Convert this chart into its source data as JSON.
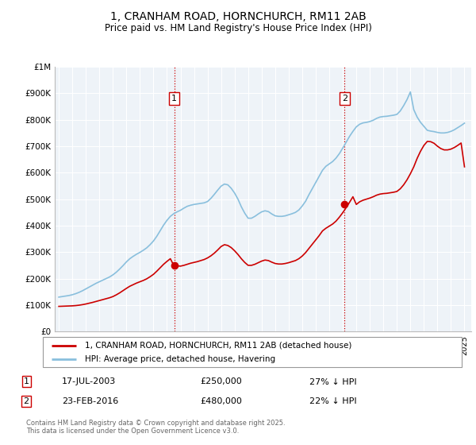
{
  "title": "1, CRANHAM ROAD, HORNCHURCH, RM11 2AB",
  "subtitle": "Price paid vs. HM Land Registry's House Price Index (HPI)",
  "ylim": [
    0,
    1000000
  ],
  "yticks": [
    0,
    100000,
    200000,
    300000,
    400000,
    500000,
    600000,
    700000,
    800000,
    900000,
    1000000
  ],
  "ytick_labels": [
    "£0",
    "£100K",
    "£200K",
    "£300K",
    "£400K",
    "£500K",
    "£600K",
    "£700K",
    "£800K",
    "£900K",
    "£1M"
  ],
  "hpi_color": "#89bfdd",
  "price_color": "#cc0000",
  "vline_color": "#cc0000",
  "chart_bg": "#f0f4f8",
  "transaction1_date": 2003.54,
  "transaction1_price": 250000,
  "transaction1_label": "1",
  "transaction2_date": 2016.14,
  "transaction2_price": 480000,
  "transaction2_label": "2",
  "legend_line1": "1, CRANHAM ROAD, HORNCHURCH, RM11 2AB (detached house)",
  "legend_line2": "HPI: Average price, detached house, Havering",
  "note1_label": "1",
  "note1_date": "17-JUL-2003",
  "note1_price": "£250,000",
  "note1_pct": "27% ↓ HPI",
  "note2_label": "2",
  "note2_date": "23-FEB-2016",
  "note2_price": "£480,000",
  "note2_pct": "22% ↓ HPI",
  "footer": "Contains HM Land Registry data © Crown copyright and database right 2025.\nThis data is licensed under the Open Government Licence v3.0.",
  "hpi_x": [
    1995,
    1995.25,
    1995.5,
    1995.75,
    1996,
    1996.25,
    1996.5,
    1996.75,
    1997,
    1997.25,
    1997.5,
    1997.75,
    1998,
    1998.25,
    1998.5,
    1998.75,
    1999,
    1999.25,
    1999.5,
    1999.75,
    2000,
    2000.25,
    2000.5,
    2000.75,
    2001,
    2001.25,
    2001.5,
    2001.75,
    2002,
    2002.25,
    2002.5,
    2002.75,
    2003,
    2003.25,
    2003.5,
    2003.75,
    2004,
    2004.25,
    2004.5,
    2004.75,
    2005,
    2005.25,
    2005.5,
    2005.75,
    2006,
    2006.25,
    2006.5,
    2006.75,
    2007,
    2007.25,
    2007.5,
    2007.75,
    2008,
    2008.25,
    2008.5,
    2008.75,
    2009,
    2009.25,
    2009.5,
    2009.75,
    2010,
    2010.25,
    2010.5,
    2010.75,
    2011,
    2011.25,
    2011.5,
    2011.75,
    2012,
    2012.25,
    2012.5,
    2012.75,
    2013,
    2013.25,
    2013.5,
    2013.75,
    2014,
    2014.25,
    2014.5,
    2014.75,
    2015,
    2015.25,
    2015.5,
    2015.75,
    2016,
    2016.25,
    2016.5,
    2016.75,
    2017,
    2017.25,
    2017.5,
    2017.75,
    2018,
    2018.25,
    2018.5,
    2018.75,
    2019,
    2019.25,
    2019.5,
    2019.75,
    2020,
    2020.25,
    2020.5,
    2020.75,
    2021,
    2021.25,
    2021.5,
    2021.75,
    2022,
    2022.25,
    2022.5,
    2022.75,
    2023,
    2023.25,
    2023.5,
    2023.75,
    2024,
    2024.25,
    2024.5,
    2024.75,
    2025
  ],
  "hpi_y": [
    130000,
    132000,
    134000,
    136000,
    139000,
    143000,
    148000,
    154000,
    161000,
    168000,
    175000,
    182000,
    188000,
    194000,
    200000,
    206000,
    214000,
    224000,
    236000,
    249000,
    263000,
    275000,
    284000,
    292000,
    299000,
    307000,
    316000,
    328000,
    342000,
    360000,
    381000,
    402000,
    420000,
    435000,
    445000,
    452000,
    458000,
    466000,
    473000,
    477000,
    480000,
    482000,
    484000,
    486000,
    491000,
    503000,
    518000,
    534000,
    549000,
    557000,
    554000,
    541000,
    523000,
    500000,
    471000,
    447000,
    428000,
    428000,
    435000,
    444000,
    452000,
    456000,
    453000,
    444000,
    437000,
    435000,
    435000,
    437000,
    441000,
    445000,
    450000,
    459000,
    474000,
    492000,
    517000,
    540000,
    563000,
    586000,
    609000,
    624000,
    633000,
    642000,
    655000,
    672000,
    693000,
    715000,
    737000,
    756000,
    773000,
    783000,
    788000,
    790000,
    793000,
    798000,
    805000,
    810000,
    812000,
    813000,
    815000,
    817000,
    820000,
    833000,
    853000,
    876000,
    905000,
    838000,
    810000,
    790000,
    775000,
    760000,
    757000,
    755000,
    752000,
    750000,
    750000,
    752000,
    756000,
    762000,
    770000,
    778000,
    787000
  ],
  "price_x": [
    1995,
    1995.25,
    1995.5,
    1995.75,
    1996,
    1996.25,
    1996.5,
    1996.75,
    1997,
    1997.25,
    1997.5,
    1997.75,
    1998,
    1998.25,
    1998.5,
    1998.75,
    1999,
    1999.25,
    1999.5,
    1999.75,
    2000,
    2000.25,
    2000.5,
    2000.75,
    2001,
    2001.25,
    2001.5,
    2001.75,
    2002,
    2002.25,
    2002.5,
    2002.75,
    2003,
    2003.25,
    2003.5,
    2003.75,
    2004,
    2004.25,
    2004.5,
    2004.75,
    2005,
    2005.25,
    2005.5,
    2005.75,
    2006,
    2006.25,
    2006.5,
    2006.75,
    2007,
    2007.25,
    2007.5,
    2007.75,
    2008,
    2008.25,
    2008.5,
    2008.75,
    2009,
    2009.25,
    2009.5,
    2009.75,
    2010,
    2010.25,
    2010.5,
    2010.75,
    2011,
    2011.25,
    2011.5,
    2011.75,
    2012,
    2012.25,
    2012.5,
    2012.75,
    2013,
    2013.25,
    2013.5,
    2013.75,
    2014,
    2014.25,
    2014.5,
    2014.75,
    2015,
    2015.25,
    2015.5,
    2015.75,
    2016,
    2016.25,
    2016.5,
    2016.75,
    2017,
    2017.25,
    2017.5,
    2017.75,
    2018,
    2018.25,
    2018.5,
    2018.75,
    2019,
    2019.25,
    2019.5,
    2019.75,
    2020,
    2020.25,
    2020.5,
    2020.75,
    2021,
    2021.25,
    2021.5,
    2021.75,
    2022,
    2022.25,
    2022.5,
    2022.75,
    2023,
    2023.25,
    2023.5,
    2023.75,
    2024,
    2024.25,
    2024.5,
    2024.75,
    2025
  ],
  "price_y": [
    95000,
    95500,
    96000,
    96500,
    97000,
    98000,
    99500,
    101500,
    104000,
    107000,
    110000,
    113500,
    117000,
    120500,
    124000,
    127500,
    132000,
    138500,
    146000,
    154500,
    163000,
    171000,
    177000,
    183000,
    188000,
    193000,
    199000,
    207000,
    216000,
    228000,
    241000,
    254000,
    265000,
    275000,
    250000,
    248000,
    247000,
    250000,
    254000,
    258000,
    261000,
    264000,
    268000,
    272000,
    278000,
    286000,
    296000,
    308000,
    321000,
    328000,
    325000,
    317000,
    305000,
    291000,
    275000,
    261000,
    250000,
    250000,
    254000,
    260000,
    266000,
    270000,
    268000,
    262000,
    257000,
    255000,
    255000,
    257000,
    260000,
    264000,
    268000,
    275000,
    285000,
    298000,
    314000,
    330000,
    346000,
    362000,
    380000,
    390000,
    398000,
    406000,
    417000,
    432000,
    449000,
    468000,
    488000,
    509000,
    480000,
    490000,
    496000,
    500000,
    504000,
    509000,
    515000,
    519000,
    521000,
    522000,
    524000,
    526000,
    529000,
    539000,
    554000,
    573000,
    596000,
    622000,
    654000,
    681000,
    703000,
    718000,
    717000,
    711000,
    700000,
    691000,
    686000,
    686000,
    689000,
    695000,
    703000,
    712000,
    622000
  ]
}
